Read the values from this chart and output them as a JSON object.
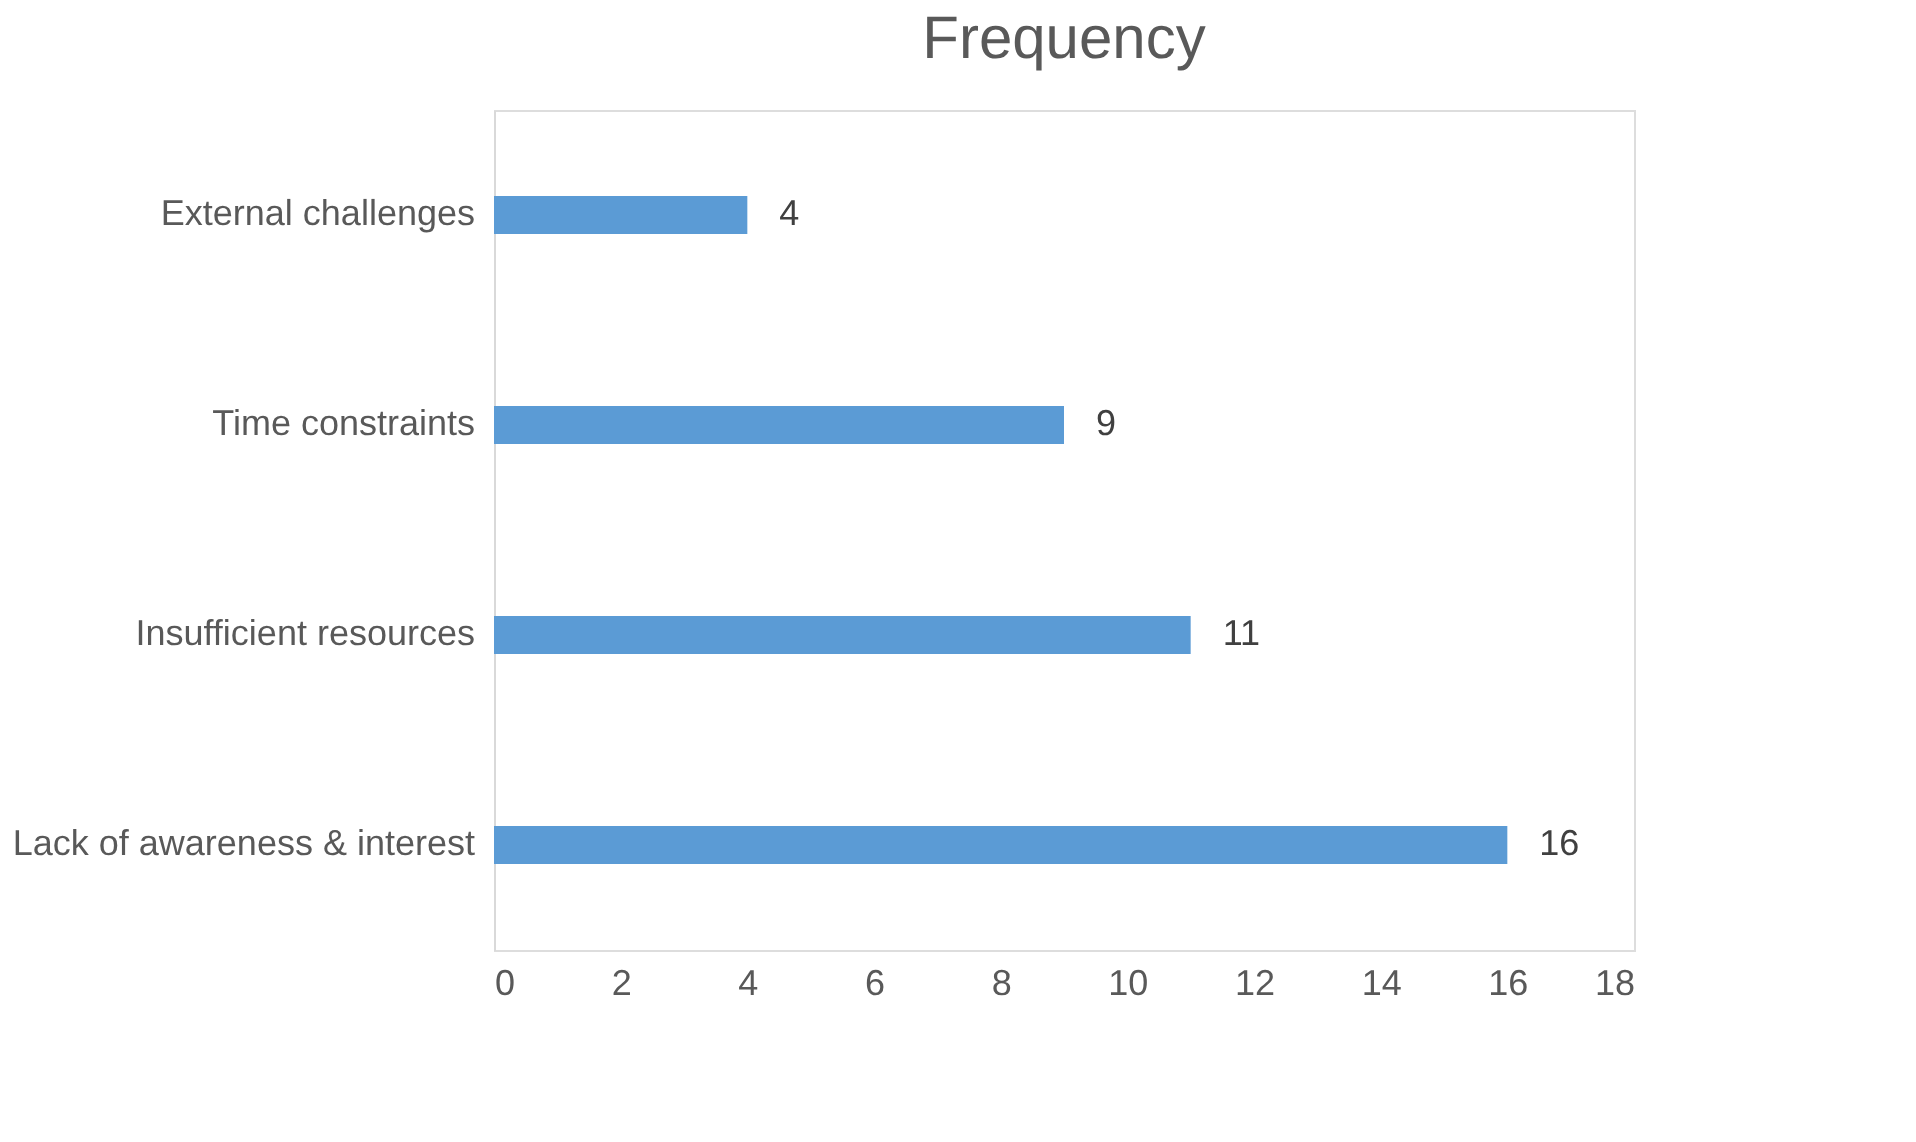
{
  "chart_data": {
    "type": "bar",
    "orientation": "horizontal",
    "title": "Frequency",
    "categories": [
      "External challenges",
      "Time constraints",
      "Insufficient resources",
      "Lack of awareness & interest"
    ],
    "values": [
      4,
      9,
      11,
      16
    ],
    "color": "#5b9bd5",
    "xlim": [
      0,
      18
    ],
    "xticks": [
      0,
      2,
      4,
      6,
      8,
      10,
      12,
      14,
      16,
      18
    ],
    "grid": false,
    "data_labels": true
  }
}
